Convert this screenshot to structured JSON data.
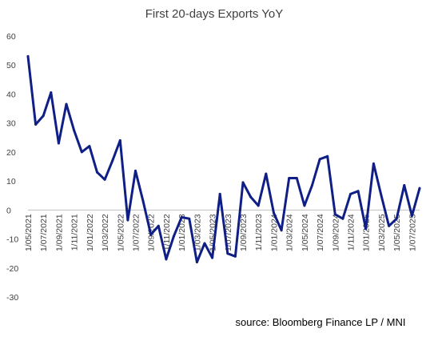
{
  "chart_data": {
    "type": "line",
    "title": "First 20-days Exports YoY",
    "xlabel": "",
    "ylabel": "",
    "ylim": [
      -30,
      60
    ],
    "yticks": [
      60,
      50,
      40,
      30,
      20,
      10,
      0,
      -10,
      -20,
      -30
    ],
    "grid": false,
    "legend": "none",
    "x_tick_labels": [
      "1/05/2021",
      "1/07/2021",
      "1/09/2021",
      "1/11/2021",
      "1/01/2022",
      "1/03/2022",
      "1/05/2022",
      "1/07/2022",
      "1/09/2022",
      "1/11/2022",
      "1/01/2023",
      "1/03/2023",
      "1/05/2023",
      "1/07/2023",
      "1/09/2023",
      "1/11/2023",
      "1/01/2024",
      "1/03/2024",
      "1/05/2024",
      "1/07/2024",
      "1/09/2024",
      "1/11/2024",
      "1/01/2025",
      "1/03/2025",
      "1/05/2025",
      "1/07/2025"
    ],
    "series": [
      {
        "color": "#0f1f85",
        "x": [
          "1/05/2021",
          "1/06/2021",
          "1/07/2021",
          "1/08/2021",
          "1/09/2021",
          "1/10/2021",
          "1/11/2021",
          "1/12/2021",
          "1/01/2022",
          "1/02/2022",
          "1/03/2022",
          "1/04/2022",
          "1/05/2022",
          "1/06/2022",
          "1/07/2022",
          "1/08/2022",
          "1/09/2022",
          "1/10/2022",
          "1/11/2022",
          "1/12/2022",
          "1/01/2023",
          "1/02/2023",
          "1/03/2023",
          "1/04/2023",
          "1/05/2023",
          "1/06/2023",
          "1/07/2023",
          "1/08/2023",
          "1/09/2023",
          "1/10/2023",
          "1/11/2023",
          "1/12/2023",
          "1/01/2024",
          "1/02/2024",
          "1/03/2024",
          "1/04/2024",
          "1/05/2024",
          "1/06/2024",
          "1/07/2024",
          "1/08/2024",
          "1/09/2024",
          "1/10/2024",
          "1/11/2024",
          "1/12/2024",
          "1/01/2025",
          "1/02/2025",
          "1/03/2025",
          "1/04/2025",
          "1/05/2025",
          "1/06/2025",
          "1/07/2025",
          "1/08/2025"
        ],
        "values": [
          53,
          29.5,
          32.5,
          40.5,
          23,
          36.5,
          27.5,
          20,
          22,
          13,
          10.5,
          17,
          24,
          -3.5,
          13.5,
          3,
          -8.5,
          -5.5,
          -17,
          -9,
          -2.5,
          -3,
          -18,
          -11.5,
          -16.5,
          5.5,
          -15,
          -16,
          9.5,
          4.5,
          1.5,
          12.5,
          -1,
          -7,
          11,
          11,
          1.5,
          8.5,
          17.5,
          18.5,
          -1.5,
          -3,
          5.5,
          6.5,
          -6.5,
          16,
          5,
          -5.5,
          -3,
          8.5,
          -2,
          7.5
        ]
      }
    ]
  },
  "source_text": "source: Bloomberg Finance LP / MNI"
}
